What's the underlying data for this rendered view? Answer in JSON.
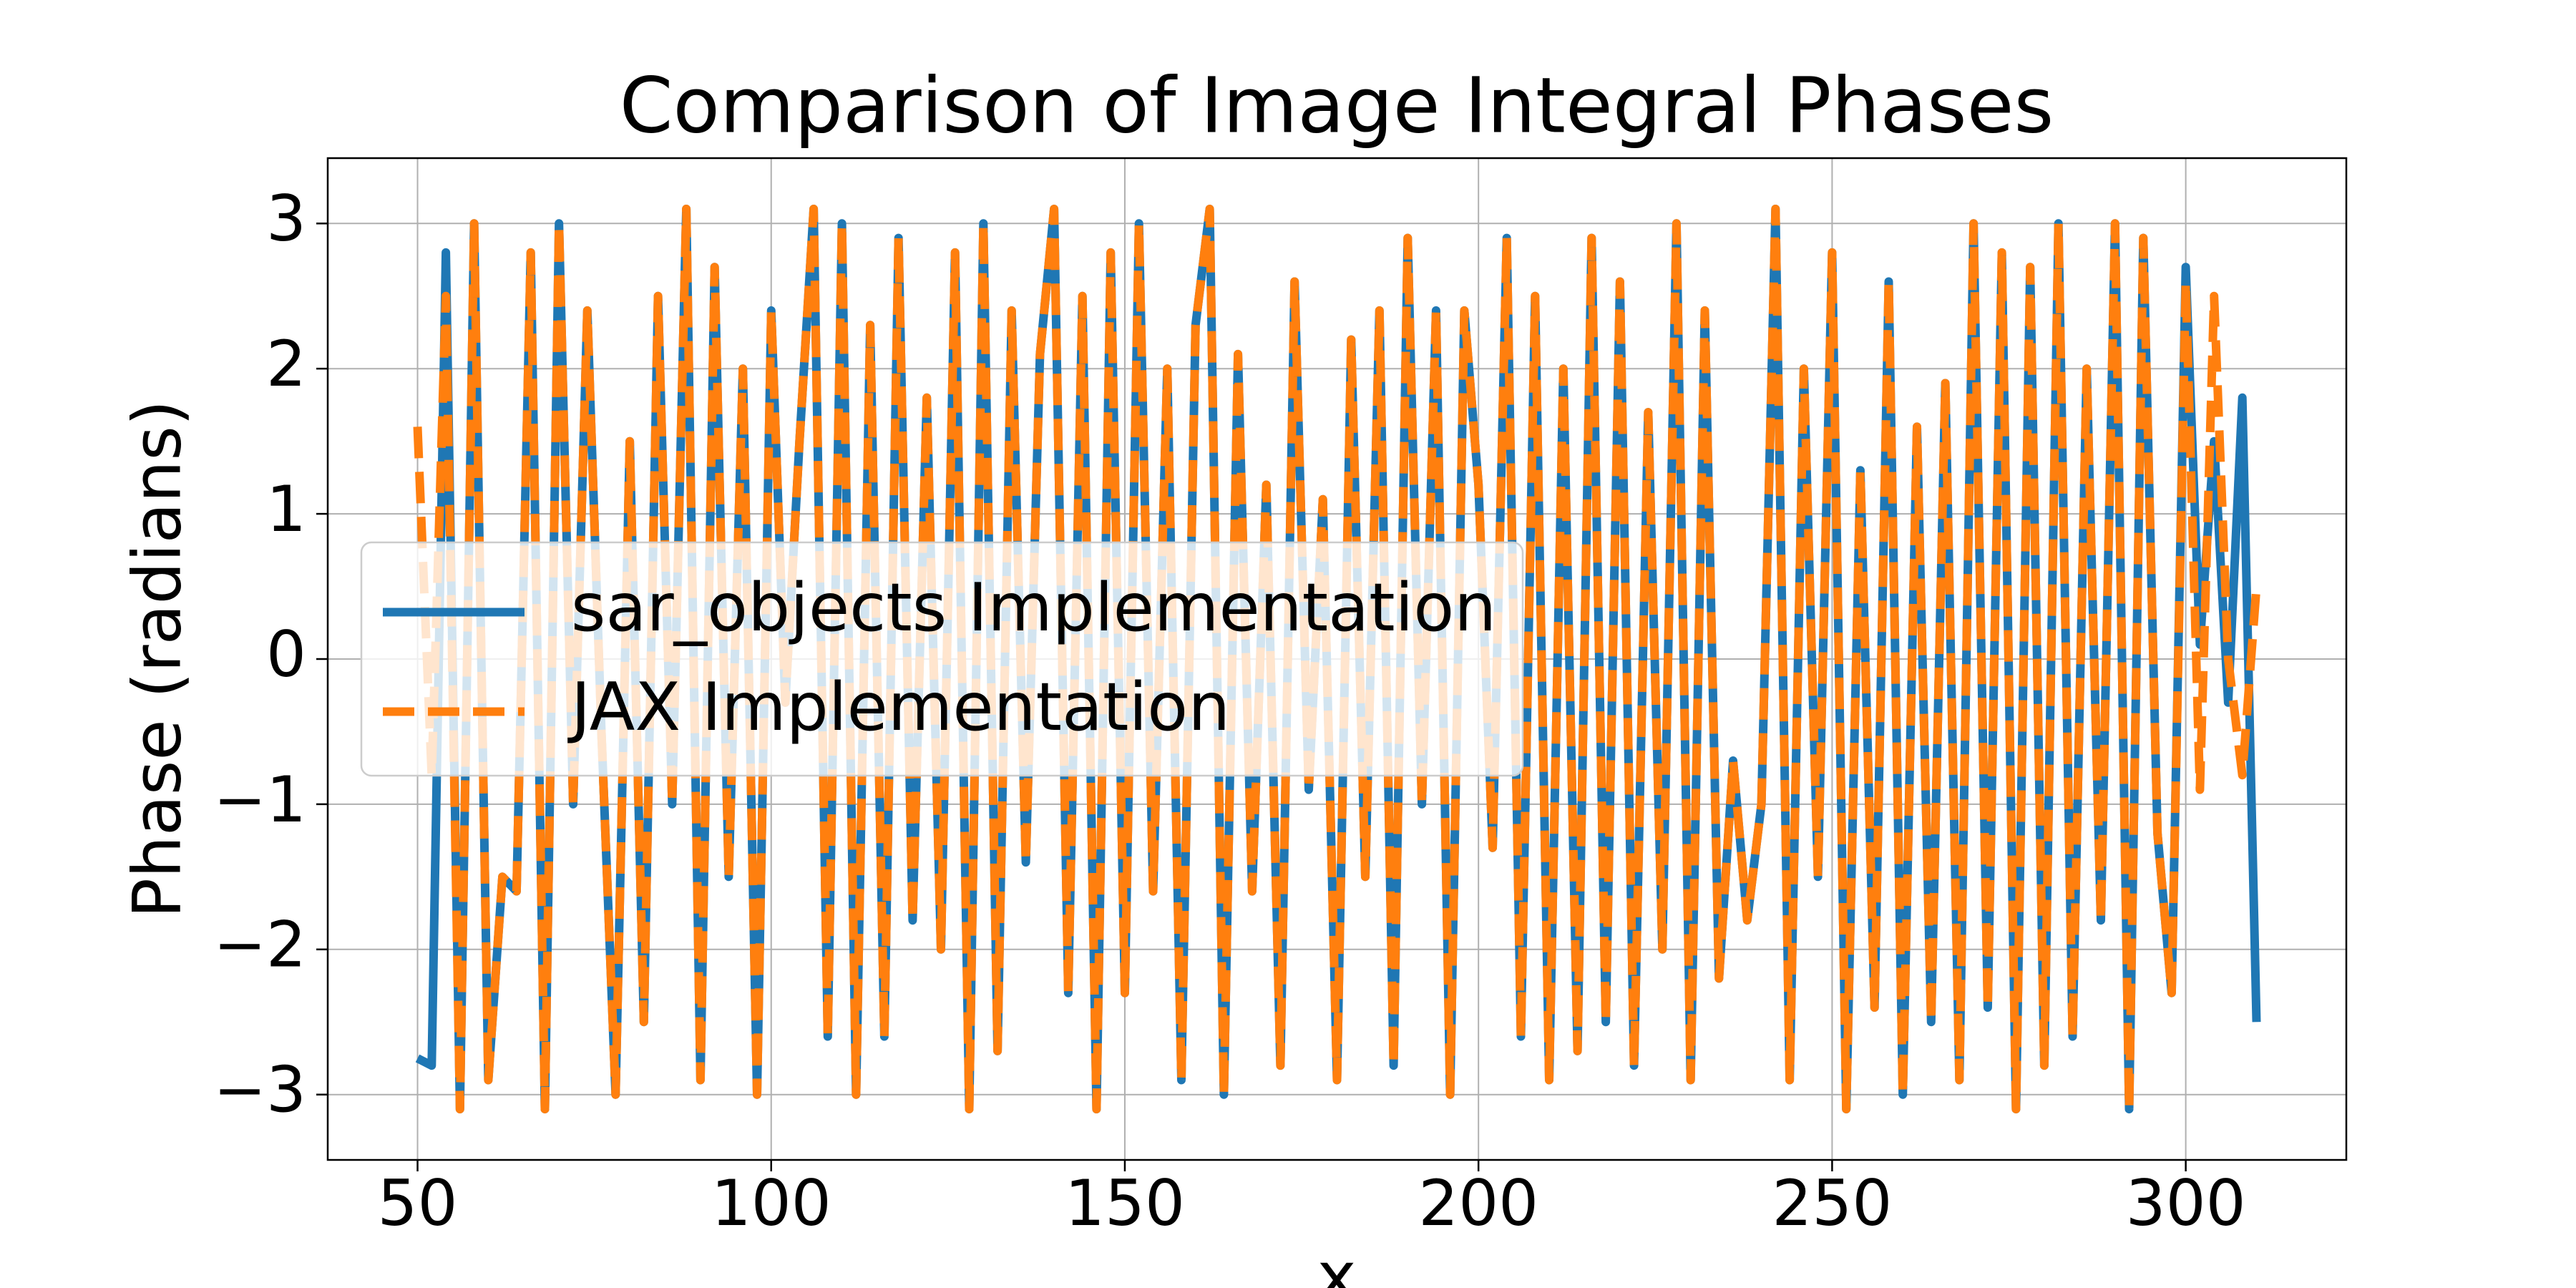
{
  "chart_data": {
    "type": "line",
    "title": "Comparison of Image Integral Phases",
    "x_label": "x",
    "y_label": "Phase (radians)",
    "xlim": [
      37.3,
      322.7
    ],
    "ylim": [
      -3.45,
      3.45
    ],
    "xticks": [
      50,
      100,
      150,
      200,
      250,
      300
    ],
    "yticks": [
      {
        "value": -3,
        "label": "−3"
      },
      {
        "value": -2,
        "label": "−2"
      },
      {
        "value": -1,
        "label": "−1"
      },
      0,
      1,
      2,
      3
    ],
    "grid": true,
    "legend_position": "center left",
    "x": [
      50,
      52,
      54,
      56,
      58,
      60,
      62,
      64,
      66,
      68,
      70,
      72,
      74,
      76,
      78,
      80,
      82,
      84,
      86,
      88,
      90,
      92,
      94,
      96,
      98,
      100,
      102,
      104,
      106,
      108,
      110,
      112,
      114,
      116,
      118,
      120,
      122,
      124,
      126,
      128,
      130,
      132,
      134,
      136,
      138,
      140,
      142,
      144,
      146,
      148,
      150,
      152,
      154,
      156,
      158,
      160,
      162,
      164,
      166,
      168,
      170,
      172,
      174,
      176,
      178,
      180,
      182,
      184,
      186,
      188,
      190,
      192,
      194,
      196,
      198,
      200,
      202,
      204,
      206,
      208,
      210,
      212,
      214,
      216,
      218,
      220,
      222,
      224,
      226,
      228,
      230,
      232,
      234,
      236,
      238,
      240,
      242,
      244,
      246,
      248,
      250,
      252,
      254,
      256,
      258,
      260,
      262,
      264,
      266,
      268,
      270,
      272,
      274,
      276,
      278,
      280,
      282,
      284,
      286,
      288,
      290,
      292,
      294,
      296,
      298,
      300,
      302,
      304,
      306,
      308,
      310
    ],
    "series": [
      {
        "name": "sar_objects Implementation",
        "color": "#1f77b4",
        "style": "solid",
        "values": [
          -2.75,
          -2.8,
          2.8,
          -3.1,
          3.0,
          -2.9,
          -1.5,
          -1.6,
          2.8,
          -3.1,
          3.0,
          -1.0,
          2.4,
          -0.5,
          -3.0,
          1.5,
          -2.5,
          2.5,
          -1.0,
          3.1,
          -2.9,
          2.7,
          -1.5,
          2.0,
          -3.0,
          2.4,
          -0.3,
          1.5,
          3.1,
          -2.6,
          3.0,
          -3.0,
          2.3,
          -2.6,
          2.9,
          -1.8,
          1.8,
          -2.0,
          2.8,
          -3.1,
          3.0,
          -2.7,
          2.4,
          -1.4,
          2.1,
          3.1,
          -2.3,
          2.5,
          -3.1,
          2.8,
          -2.3,
          3.0,
          -1.6,
          2.0,
          -2.9,
          2.3,
          3.1,
          -3.0,
          2.1,
          -1.6,
          1.2,
          -2.8,
          2.6,
          -0.9,
          1.1,
          -2.9,
          2.2,
          -1.5,
          2.4,
          -2.8,
          2.9,
          -1.0,
          2.4,
          -3.0,
          2.4,
          1.2,
          -1.3,
          2.9,
          -2.6,
          2.5,
          -2.9,
          2.0,
          -2.7,
          2.9,
          -2.5,
          2.6,
          -2.8,
          1.7,
          -2.0,
          3.0,
          -2.9,
          2.4,
          -2.2,
          -0.7,
          -1.8,
          -1.0,
          3.1,
          -2.9,
          2.0,
          -1.5,
          2.8,
          -3.1,
          1.3,
          -2.4,
          2.6,
          -3.0,
          1.6,
          -2.5,
          1.9,
          -2.9,
          3.0,
          -2.4,
          2.8,
          -3.1,
          2.7,
          -2.8,
          3.0,
          -2.6,
          2.0,
          -1.8,
          3.0,
          -3.1,
          2.9,
          -1.2,
          -2.3,
          2.7,
          0.1,
          1.5,
          -0.3,
          1.8,
          -2.5
        ]
      },
      {
        "name": "JAX Implementation",
        "color": "#ff7f0e",
        "style": "dashed",
        "values": [
          1.6,
          -0.8,
          2.5,
          -3.1,
          3.0,
          -2.9,
          -1.5,
          -1.6,
          2.8,
          -3.1,
          3.0,
          -1.0,
          2.4,
          -0.5,
          -3.0,
          1.5,
          -2.5,
          2.5,
          -1.0,
          3.1,
          -2.9,
          2.7,
          -1.5,
          2.0,
          -3.0,
          2.4,
          -0.3,
          1.5,
          3.1,
          -2.6,
          3.0,
          -3.0,
          2.3,
          -2.6,
          2.9,
          -1.8,
          1.8,
          -2.0,
          2.8,
          -3.1,
          3.0,
          -2.7,
          2.4,
          -1.4,
          2.1,
          3.1,
          -2.3,
          2.5,
          -3.1,
          2.8,
          -2.3,
          3.0,
          -1.6,
          2.0,
          -2.9,
          2.3,
          3.1,
          -3.0,
          2.1,
          -1.6,
          1.2,
          -2.8,
          2.6,
          -0.9,
          1.1,
          -2.9,
          2.2,
          -1.5,
          2.4,
          -2.8,
          2.9,
          -1.0,
          2.4,
          -3.0,
          2.4,
          1.2,
          -1.3,
          2.9,
          -2.6,
          2.5,
          -2.9,
          2.0,
          -2.7,
          2.9,
          -2.5,
          2.6,
          -2.8,
          1.7,
          -2.0,
          3.0,
          -2.9,
          2.4,
          -2.2,
          -0.7,
          -1.8,
          -1.0,
          3.1,
          -2.9,
          2.0,
          -1.5,
          2.8,
          -3.1,
          1.3,
          -2.4,
          2.6,
          -3.0,
          1.6,
          -2.5,
          1.9,
          -2.9,
          3.0,
          -2.4,
          2.8,
          -3.1,
          2.7,
          -2.8,
          3.0,
          -2.6,
          2.0,
          -1.8,
          3.0,
          -3.1,
          2.9,
          -1.2,
          -2.3,
          2.6,
          -0.9,
          2.5,
          0.0,
          -0.8,
          0.5
        ]
      }
    ]
  }
}
